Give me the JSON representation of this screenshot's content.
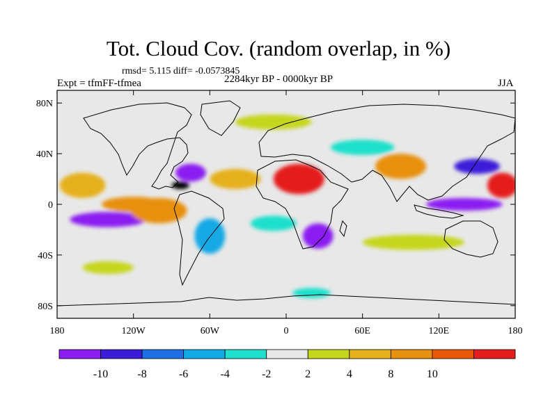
{
  "title": "Tot. Cloud Cov. (random overlap, in %)",
  "stats_line": "rmsd= 5.115 diff= -0.0573845",
  "left_label": "Expt = tfmFF-tfmea",
  "center_label": "2284kyr BP - 0000kyr BP",
  "right_label": "JJA",
  "map": {
    "projection": "cylindrical-equidistant",
    "lon_range": [
      -180,
      180
    ],
    "lat_range": [
      -90,
      90
    ],
    "x_ticks": [
      {
        "value": -180,
        "label": "180"
      },
      {
        "value": -120,
        "label": "120W"
      },
      {
        "value": -60,
        "label": "60W"
      },
      {
        "value": 0,
        "label": "0"
      },
      {
        "value": 60,
        "label": "60E"
      },
      {
        "value": 120,
        "label": "120E"
      },
      {
        "value": 180,
        "label": "180"
      }
    ],
    "y_ticks": [
      {
        "value": 80,
        "label": "80N"
      },
      {
        "value": 40,
        "label": "40N"
      },
      {
        "value": 0,
        "label": "0"
      },
      {
        "value": -40,
        "label": "40S"
      },
      {
        "value": -80,
        "label": "80S"
      }
    ],
    "missing_color": "#e8e8e8",
    "fields": [
      {
        "lon": -160,
        "lat": 15,
        "rx": 18,
        "ry": 10,
        "level": 7
      },
      {
        "lon": -120,
        "lat": 0,
        "rx": 25,
        "ry": 6,
        "level": 8
      },
      {
        "lon": -140,
        "lat": -12,
        "rx": 30,
        "ry": 6,
        "level": 0
      },
      {
        "lon": -100,
        "lat": -5,
        "rx": 22,
        "ry": 10,
        "level": 8
      },
      {
        "lon": -75,
        "lat": 25,
        "rx": 12,
        "ry": 7,
        "level": 0
      },
      {
        "lon": -83,
        "lat": 15,
        "rx": 7,
        "ry": 3,
        "level": 11
      },
      {
        "lon": -60,
        "lat": -25,
        "rx": 12,
        "ry": 14,
        "level": 3
      },
      {
        "lon": -40,
        "lat": 20,
        "rx": 20,
        "ry": 8,
        "level": 7
      },
      {
        "lon": 10,
        "lat": 20,
        "rx": 20,
        "ry": 12,
        "level": 10
      },
      {
        "lon": 25,
        "lat": -25,
        "rx": 12,
        "ry": 10,
        "level": 0
      },
      {
        "lon": -10,
        "lat": -15,
        "rx": 18,
        "ry": 6,
        "level": 4
      },
      {
        "lon": 90,
        "lat": 30,
        "rx": 20,
        "ry": 10,
        "level": 8
      },
      {
        "lon": 150,
        "lat": 30,
        "rx": 18,
        "ry": 6,
        "level": 1
      },
      {
        "lon": 140,
        "lat": 0,
        "rx": 30,
        "ry": 5,
        "level": 0
      },
      {
        "lon": 170,
        "lat": 15,
        "rx": 12,
        "ry": 10,
        "level": 10
      },
      {
        "lon": 100,
        "lat": -30,
        "rx": 40,
        "ry": 6,
        "level": 6
      },
      {
        "lon": -10,
        "lat": 65,
        "rx": 30,
        "ry": 6,
        "level": 6
      },
      {
        "lon": 60,
        "lat": 45,
        "rx": 25,
        "ry": 6,
        "level": 4
      },
      {
        "lon": -140,
        "lat": -50,
        "rx": 20,
        "ry": 5,
        "level": 6
      },
      {
        "lon": 20,
        "lat": -70,
        "rx": 15,
        "ry": 4,
        "level": 4
      }
    ]
  },
  "colorbar": {
    "colors": [
      "#8b1cf2",
      "#3d1cd9",
      "#1f6fe6",
      "#12a9e6",
      "#1fe0cc",
      "#e8e8e8",
      "#c6d61c",
      "#e6b01c",
      "#e8900f",
      "#e85a0a",
      "#e41e1e"
    ],
    "labels": [
      "-10",
      "-8",
      "-6",
      "-4",
      "-2",
      "2",
      "4",
      "8",
      "10"
    ]
  }
}
